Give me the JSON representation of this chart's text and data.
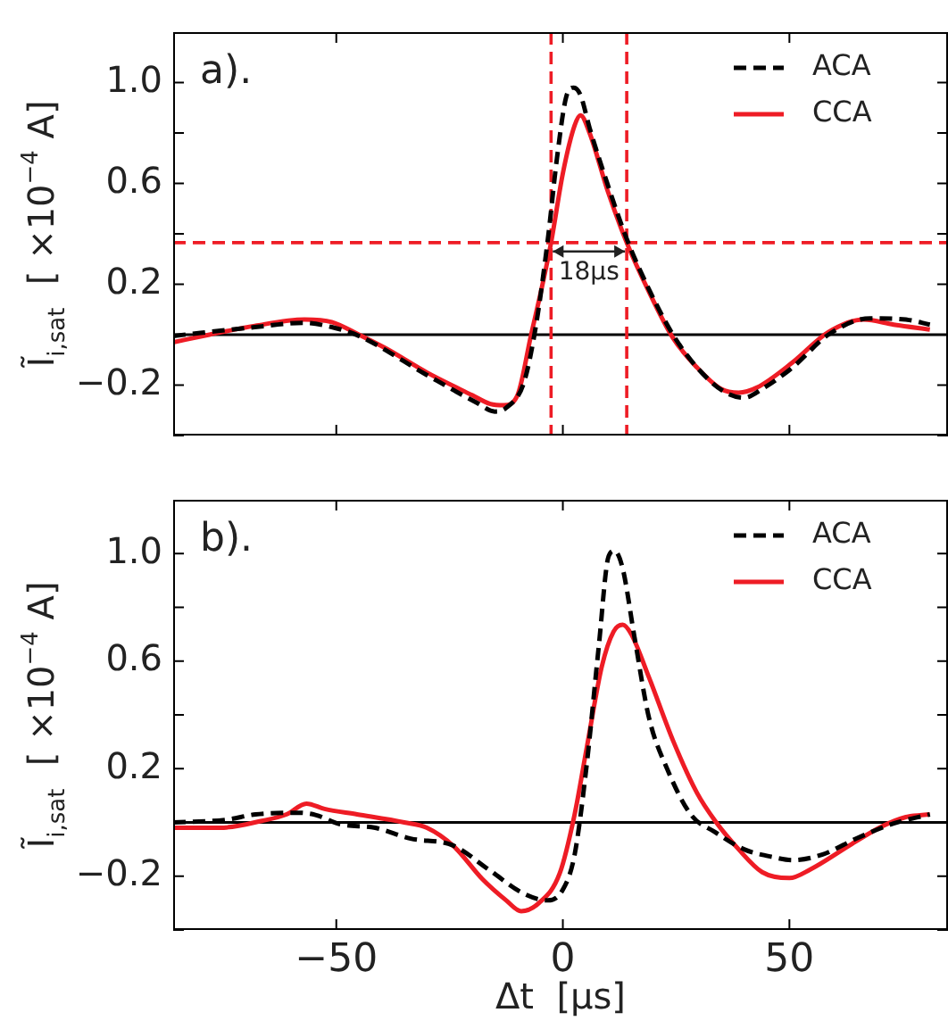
{
  "chart_data": [
    {
      "type": "line",
      "ylabel": "Ĩ$_{i,sat}$  [ ×10$^{−4}$ A]",
      "xlim": [
        -86,
        85
      ],
      "ylim": [
        -0.4,
        1.2
      ],
      "xticks": [
        -50,
        0,
        50
      ],
      "yticks": [
        {
          "value": -0.4,
          "label": null
        },
        {
          "value": -0.2,
          "label": "−0.2"
        },
        {
          "value": 0,
          "label": null
        },
        {
          "value": 0.2,
          "label": "0.2"
        },
        {
          "value": 0.4,
          "label": null
        },
        {
          "value": 0.6,
          "label": "0.6"
        },
        {
          "value": 0.8,
          "label": null
        },
        {
          "value": 1.0,
          "label": "1.0"
        }
      ],
      "tick_labels": "y",
      "grid": false,
      "legend": "top right",
      "marker": "none",
      "annotations": [
        "a).",
        {
          "text": "18μs",
          "x": 5.75,
          "y": 0.33
        }
      ],
      "ref_lines": [
        {
          "axis": "y",
          "value": 0,
          "color": "#000000",
          "line_style": "solid"
        },
        {
          "axis": "x",
          "value": -2.6,
          "color": "#ee1c25",
          "line_style": "dashed"
        },
        {
          "axis": "x",
          "value": 14.1,
          "color": "#ee1c25",
          "line_style": "dashed"
        },
        {
          "axis": "y",
          "value": 0.365,
          "color": "#ee1c25",
          "line_style": "dashed"
        }
      ],
      "series": [
        {
          "name": "ACA",
          "color": "#000000",
          "line_style": "dashed",
          "x": [
            -86,
            -68,
            -57,
            -51,
            -45,
            -30,
            -19,
            -15,
            -12.5,
            -8.6,
            -5.9,
            -3.3,
            -1.3,
            0.7,
            2.4,
            3.9,
            5.9,
            9.9,
            14.1,
            19,
            24.3,
            29.6,
            35.5,
            40,
            44,
            50.7,
            58.6,
            67.8,
            75.7,
            81
          ],
          "values": [
            -0.005,
            0.03,
            0.047,
            0.03,
            -0.005,
            -0.16,
            -0.27,
            -0.305,
            -0.29,
            -0.19,
            0.04,
            0.38,
            0.7,
            0.94,
            0.98,
            0.95,
            0.82,
            0.595,
            0.38,
            0.18,
            0.0,
            -0.13,
            -0.225,
            -0.25,
            -0.215,
            -0.13,
            0.0,
            0.065,
            0.06,
            0.04
          ]
        },
        {
          "name": "CCA",
          "color": "#ee1c25",
          "line_style": "solid",
          "x": [
            -86,
            -78,
            -68,
            -57,
            -51,
            -45,
            -39,
            -30,
            -20,
            -16,
            -13,
            -10,
            -7,
            -4.6,
            -2.6,
            0,
            2.6,
            3.9,
            5.9,
            9.9,
            14.1,
            19,
            24.3,
            29.6,
            34.9,
            38.8,
            42.8,
            50.7,
            58.6,
            66.4,
            73,
            81
          ],
          "values": [
            -0.03,
            0.0,
            0.035,
            0.06,
            0.05,
            0.0,
            -0.055,
            -0.15,
            -0.24,
            -0.275,
            -0.28,
            -0.24,
            0.0,
            0.19,
            0.365,
            0.64,
            0.83,
            0.87,
            0.8,
            0.57,
            0.365,
            0.17,
            -0.013,
            -0.13,
            -0.215,
            -0.23,
            -0.21,
            -0.11,
            0.01,
            0.06,
            0.04,
            0.02
          ]
        }
      ]
    },
    {
      "type": "line",
      "xlabel": "Δt  [μs]",
      "ylabel": "Ĩ$_{i,sat}$  [ ×10$^{−4}$ A]",
      "xlim": [
        -86,
        85
      ],
      "ylim": [
        -0.4,
        1.2
      ],
      "xticks": [
        {
          "value": -50,
          "label": "−50"
        },
        0,
        50
      ],
      "yticks": [
        {
          "value": -0.4,
          "label": null
        },
        {
          "value": -0.2,
          "label": "−0.2"
        },
        {
          "value": 0,
          "label": null
        },
        {
          "value": 0.2,
          "label": "0.2"
        },
        {
          "value": 0.4,
          "label": null
        },
        {
          "value": 0.6,
          "label": "0.6"
        },
        {
          "value": 0.8,
          "label": null
        },
        {
          "value": 1.0,
          "label": "1.0"
        }
      ],
      "grid": false,
      "legend": "top right",
      "marker": "none",
      "annotations": [
        "b)."
      ],
      "ref_lines": [
        {
          "axis": "y",
          "value": 0,
          "color": "#000000",
          "line_style": "solid"
        }
      ],
      "series": [
        {
          "name": "ACA",
          "color": "#000000",
          "line_style": "dashed",
          "x": [
            -86,
            -74.3,
            -67.8,
            -58.6,
            -54.6,
            -49.3,
            -41.4,
            -33.6,
            -24.3,
            -16.4,
            -8.6,
            -3.3,
            0,
            2.6,
            5.3,
            7.9,
            10.1,
            11.4,
            13.2,
            15.8,
            19,
            23,
            28.3,
            33.6,
            40,
            46.7,
            50.7,
            57.2,
            65,
            73,
            81
          ],
          "values": [
            0.0,
            0.01,
            0.03,
            0.036,
            0.028,
            -0.006,
            -0.02,
            -0.06,
            -0.085,
            -0.175,
            -0.265,
            -0.29,
            -0.25,
            -0.12,
            0.22,
            0.65,
            0.99,
            1.01,
            0.945,
            0.69,
            0.39,
            0.2,
            0.028,
            -0.036,
            -0.1,
            -0.13,
            -0.14,
            -0.12,
            -0.058,
            -0.004,
            0.03
          ]
        },
        {
          "name": "CCA",
          "color": "#ee1c25",
          "line_style": "solid",
          "x": [
            -86,
            -75.7,
            -66.4,
            -61,
            -56.6,
            -52.6,
            -45.4,
            -35,
            -30,
            -24,
            -17.8,
            -12.5,
            -9.2,
            -5.3,
            -0.7,
            2.6,
            5.3,
            8.6,
            11.2,
            13.2,
            15.1,
            19,
            24.3,
            29.6,
            33.6,
            38.8,
            44,
            50,
            54.6,
            63.8,
            70.4,
            75.7,
            81
          ],
          "values": [
            -0.02,
            -0.02,
            0.006,
            0.03,
            0.07,
            0.05,
            0.03,
            0.0,
            -0.02,
            -0.09,
            -0.21,
            -0.29,
            -0.33,
            -0.3,
            -0.19,
            0.03,
            0.28,
            0.58,
            0.71,
            0.735,
            0.7,
            0.54,
            0.305,
            0.11,
            0.006,
            -0.1,
            -0.185,
            -0.207,
            -0.175,
            -0.08,
            -0.015,
            0.02,
            0.03
          ]
        }
      ]
    }
  ]
}
